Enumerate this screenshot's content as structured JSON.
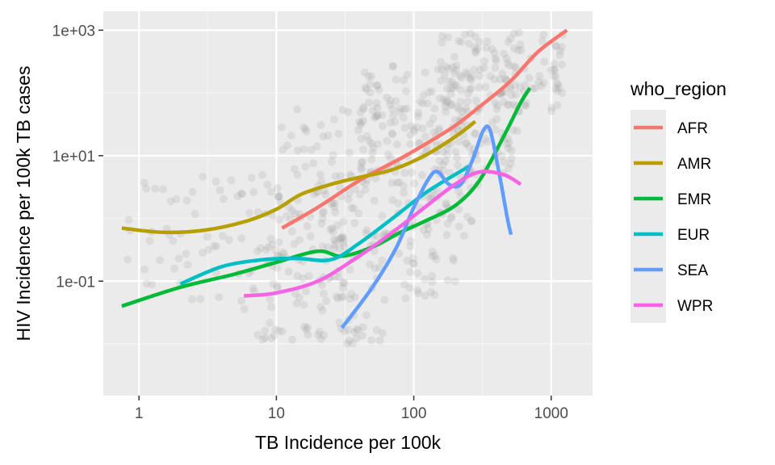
{
  "chart_data": {
    "type": "scatter",
    "xlabel": "TB Incidence per 100k",
    "ylabel": "HIV Incidence per 100k TB cases",
    "x_scale": "log10",
    "y_scale": "log10",
    "xlim": [
      0.55,
      2000
    ],
    "ylim": [
      0.0015,
      2000
    ],
    "x_ticks": [
      {
        "value": 1,
        "label": "1"
      },
      {
        "value": 10,
        "label": "10"
      },
      {
        "value": 100,
        "label": "100"
      },
      {
        "value": 1000,
        "label": "1000"
      }
    ],
    "y_ticks": [
      {
        "value": 0.1,
        "label": "1e-01"
      },
      {
        "value": 10,
        "label": "1e+01"
      },
      {
        "value": 1000,
        "label": "1e+03"
      }
    ],
    "grid": true,
    "legend": {
      "title": "who_region",
      "placement": "right"
    },
    "background_points": {
      "color": "#a6a6a6",
      "opacity": 0.22,
      "description_free": true,
      "clusters": [
        {
          "x": [
            0.8,
            30
          ],
          "y": [
            0.05,
            5
          ]
        },
        {
          "x": [
            5,
            60
          ],
          "y": [
            0.01,
            0.5
          ]
        },
        {
          "x": [
            10,
            300
          ],
          "y": [
            0.5,
            60
          ]
        },
        {
          "x": [
            40,
            600
          ],
          "y": [
            5,
            300
          ]
        },
        {
          "x": [
            150,
            1300
          ],
          "y": [
            50,
            1000
          ]
        },
        {
          "x": [
            20,
            200
          ],
          "y": [
            0.05,
            3
          ]
        },
        {
          "x": [
            8,
            60
          ],
          "y": [
            0.01,
            0.02
          ]
        }
      ]
    },
    "series": [
      {
        "name": "AFR",
        "color": "#F8766D",
        "points": [
          [
            11,
            0.7
          ],
          [
            20,
            1.5
          ],
          [
            40,
            4
          ],
          [
            80,
            9
          ],
          [
            120,
            15
          ],
          [
            200,
            30
          ],
          [
            300,
            60
          ],
          [
            500,
            150
          ],
          [
            800,
            450
          ],
          [
            1300,
            1000
          ]
        ]
      },
      {
        "name": "AMR",
        "color": "#B79F00",
        "points": [
          [
            0.75,
            0.7
          ],
          [
            1.5,
            0.6
          ],
          [
            3,
            0.65
          ],
          [
            6,
            0.9
          ],
          [
            10,
            1.4
          ],
          [
            15,
            2.4
          ],
          [
            25,
            3.5
          ],
          [
            40,
            4.5
          ],
          [
            70,
            6
          ],
          [
            120,
            10
          ],
          [
            200,
            20
          ],
          [
            280,
            35
          ]
        ]
      },
      {
        "name": "EMR",
        "color": "#00BA38",
        "points": [
          [
            0.75,
            0.04
          ],
          [
            2,
            0.08
          ],
          [
            5,
            0.13
          ],
          [
            10,
            0.2
          ],
          [
            20,
            0.3
          ],
          [
            30,
            0.25
          ],
          [
            50,
            0.35
          ],
          [
            80,
            0.6
          ],
          [
            120,
            0.9
          ],
          [
            200,
            1.6
          ],
          [
            300,
            4
          ],
          [
            450,
            20
          ],
          [
            600,
            70
          ],
          [
            700,
            120
          ]
        ]
      },
      {
        "name": "EUR",
        "color": "#00BFC4",
        "points": [
          [
            2,
            0.09
          ],
          [
            4,
            0.17
          ],
          [
            8,
            0.22
          ],
          [
            14,
            0.23
          ],
          [
            25,
            0.22
          ],
          [
            40,
            0.4
          ],
          [
            70,
            1
          ],
          [
            120,
            2.5
          ],
          [
            200,
            5
          ],
          [
            260,
            7
          ]
        ]
      },
      {
        "name": "SEA",
        "color": "#619CFF",
        "points": [
          [
            30,
            0.018
          ],
          [
            50,
            0.08
          ],
          [
            75,
            0.35
          ],
          [
            100,
            1.5
          ],
          [
            130,
            4.5
          ],
          [
            150,
            5.5
          ],
          [
            180,
            3.5
          ],
          [
            220,
            3.5
          ],
          [
            270,
            9
          ],
          [
            320,
            25
          ],
          [
            360,
            25
          ],
          [
            420,
            5
          ],
          [
            480,
            1
          ],
          [
            510,
            0.55
          ]
        ]
      },
      {
        "name": "WPR",
        "color": "#F564E3",
        "points": [
          [
            5.8,
            0.058
          ],
          [
            10,
            0.065
          ],
          [
            20,
            0.1
          ],
          [
            40,
            0.25
          ],
          [
            70,
            0.6
          ],
          [
            120,
            1.5
          ],
          [
            200,
            3.5
          ],
          [
            300,
            5.5
          ],
          [
            450,
            5
          ],
          [
            600,
            3.5
          ]
        ]
      }
    ]
  }
}
